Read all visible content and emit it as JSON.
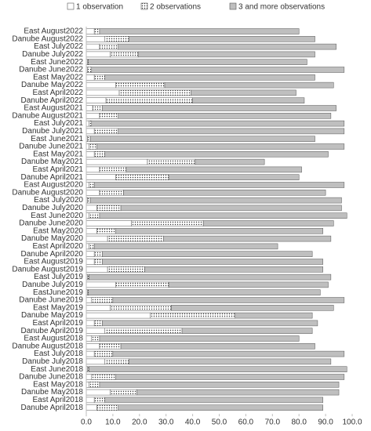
{
  "chart_data": {
    "type": "stacked-bar-horizontal",
    "categories": [
      "East August2022",
      "Danube August2022",
      "East July2022",
      "Danube July2022",
      "East June2022",
      "Danube June2022",
      "East May2022",
      "Danube May2022",
      "East April2022",
      "Danube April2022",
      "East August2021",
      "Danube August2021",
      "East July2021",
      "Danube July2021",
      "East June2021",
      "Danube June2021",
      "East May2021",
      "Danube May2021",
      "East April2021",
      "Danube April2021",
      "East August2020",
      "Danube August2020",
      "East July2020",
      "Danube July2020",
      "East June2020",
      "Danube June2020",
      "East May2020",
      "Danube May2020",
      "East April2020",
      "Danube April2020",
      "East August2019",
      "Danube August2019",
      "East July2019",
      "Danube July2019",
      "EastJune2019",
      "Danube June2019",
      "East May2019",
      "Danube May2019",
      "East April2019",
      "Danube April2019",
      "East August2018",
      "Danube August2018",
      "East July2018",
      "Danube July2018",
      "East June2018",
      "Danube June2018",
      "East May2018",
      "Danube May2018",
      "East April2018",
      "Danube April2018"
    ],
    "series": [
      {
        "name": "1 observation",
        "color": "#ffffff",
        "values": [
          3,
          7,
          5,
          9,
          0.5,
          0.5,
          3,
          11,
          12.4,
          7.4,
          2.4,
          5,
          1,
          3,
          0.5,
          1,
          3,
          23,
          5,
          11,
          1,
          5,
          0.5,
          4,
          1,
          17,
          4,
          8,
          1,
          3,
          3,
          8,
          0.5,
          11,
          0.5,
          2,
          9,
          24,
          3,
          7,
          2,
          5,
          3,
          7,
          0.5,
          2,
          1,
          9,
          3,
          4
        ]
      },
      {
        "name": "2 observations",
        "color": "#ffffff",
        "pattern": "dots",
        "values": [
          2,
          9,
          7,
          10.5,
          0.3,
          1.5,
          4,
          18.5,
          27,
          32.6,
          3.6,
          7,
          1,
          9,
          1,
          3,
          4,
          18,
          10,
          20,
          2,
          9,
          1,
          9,
          4,
          27,
          7,
          21,
          2,
          3,
          3,
          14,
          0.5,
          20,
          0.3,
          8,
          23,
          32,
          3,
          29,
          3,
          8,
          7,
          9,
          0.5,
          9,
          4,
          10,
          4,
          8
        ]
      },
      {
        "name": "3 and more observations",
        "color": "#bfbfbf",
        "values": [
          75,
          70,
          82,
          66.5,
          82.2,
          95,
          79,
          63.5,
          39.5,
          42,
          88,
          80,
          95,
          85,
          84.5,
          93,
          84,
          26,
          66,
          49,
          94,
          76,
          94.5,
          83,
          93,
          49,
          78,
          63,
          69,
          79,
          83,
          67,
          91,
          60,
          87.2,
          87,
          61,
          29,
          81,
          49,
          75,
          73,
          87,
          76,
          97,
          86,
          90,
          76,
          82,
          77
        ]
      }
    ],
    "xlim": [
      0,
      100
    ],
    "xticks": [
      {
        "value": 0,
        "label": "0.0"
      },
      {
        "value": 10,
        "label": "10.0"
      },
      {
        "value": 20,
        "label": "20.0"
      },
      {
        "value": 30,
        "label": "30.0"
      },
      {
        "value": 40,
        "label": "40.0"
      },
      {
        "value": 50,
        "label": "50.0"
      },
      {
        "value": 60,
        "label": "60.0"
      },
      {
        "value": 70,
        "label": "70.0"
      },
      {
        "value": 80,
        "label": "80.0"
      },
      {
        "value": 90,
        "label": "90.0"
      },
      {
        "value": 100,
        "label": "100.0"
      }
    ],
    "legend": "top"
  }
}
